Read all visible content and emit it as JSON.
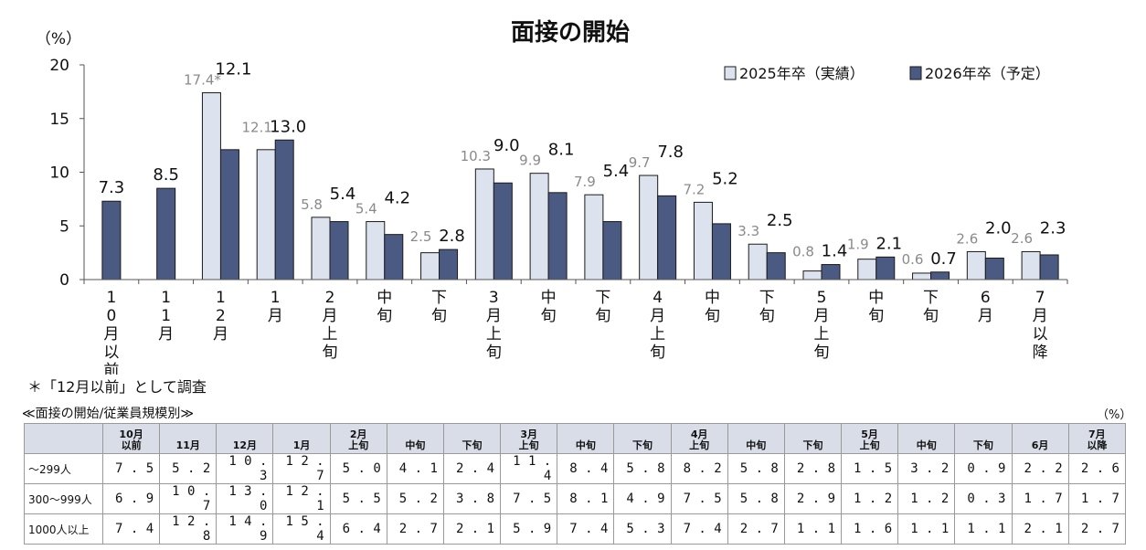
{
  "chart_data": {
    "type": "bar",
    "title": "面接の開始",
    "ylabel": "（%）",
    "ylim": [
      0,
      20
    ],
    "yticks": [
      "0",
      "5",
      "10",
      "15",
      "20"
    ],
    "categories": [
      "10月以前",
      "11月",
      "12月",
      "1月",
      "2月上旬",
      "中旬",
      "下旬",
      "3月上旬",
      "中旬",
      "下旬",
      "4月上旬",
      "中旬",
      "下旬",
      "5月上旬",
      "中旬",
      "下旬",
      "6月",
      "7月以降"
    ],
    "series": [
      {
        "name": "2025年卒（実績）",
        "color": "#dde3ee",
        "values": [
          null,
          null,
          17.4,
          12.1,
          5.8,
          5.4,
          2.5,
          10.3,
          9.9,
          7.9,
          9.7,
          7.2,
          3.3,
          0.8,
          1.9,
          0.6,
          2.6,
          2.6
        ],
        "labels": [
          "",
          "",
          "17.4*",
          "12.1",
          "5.8",
          "5.4",
          "2.5",
          "10.3",
          "9.9",
          "7.9",
          "9.7",
          "7.2",
          "3.3",
          "0.8",
          "1.9",
          "0.6",
          "2.6",
          "2.6"
        ]
      },
      {
        "name": "2026年卒（予定）",
        "color": "#4a5a82",
        "values": [
          7.3,
          8.5,
          12.1,
          13.0,
          5.4,
          4.2,
          2.8,
          9.0,
          8.1,
          5.4,
          7.8,
          5.2,
          2.5,
          1.4,
          2.1,
          0.7,
          2.0,
          2.3
        ],
        "labels": [
          "7.3",
          "8.5",
          "12.1",
          "13.0",
          "5.4",
          "4.2",
          "2.8",
          "9.0",
          "8.1",
          "5.4",
          "7.8",
          "5.2",
          "2.5",
          "1.4",
          "2.1",
          "0.7",
          "2.0",
          "2.3"
        ]
      }
    ],
    "legend_position": "top-right"
  },
  "note": "＊「12月以前」として調査",
  "table": {
    "caption": "≪面接の開始/従業員規模別≫",
    "unit": "（%）",
    "headers": [
      {
        "l1": "10月",
        "l2": "以前"
      },
      {
        "l1": "",
        "l2": "11月"
      },
      {
        "l1": "",
        "l2": "12月"
      },
      {
        "l1": "",
        "l2": "1月"
      },
      {
        "l1": "2月",
        "l2": "上旬"
      },
      {
        "l1": "",
        "l2": "中旬"
      },
      {
        "l1": "",
        "l2": "下旬"
      },
      {
        "l1": "3月",
        "l2": "上旬"
      },
      {
        "l1": "",
        "l2": "中旬"
      },
      {
        "l1": "",
        "l2": "下旬"
      },
      {
        "l1": "4月",
        "l2": "上旬"
      },
      {
        "l1": "",
        "l2": "中旬"
      },
      {
        "l1": "",
        "l2": "下旬"
      },
      {
        "l1": "5月",
        "l2": "上旬"
      },
      {
        "l1": "",
        "l2": "中旬"
      },
      {
        "l1": "",
        "l2": "下旬"
      },
      {
        "l1": "",
        "l2": "6月"
      },
      {
        "l1": "7月",
        "l2": "以降"
      }
    ],
    "rows": [
      {
        "label": "～299人",
        "values": [
          "7.5",
          "5.2",
          "10.3",
          "12.7",
          "5.0",
          "4.1",
          "2.4",
          "11.4",
          "8.4",
          "5.8",
          "8.2",
          "5.8",
          "2.8",
          "1.5",
          "3.2",
          "0.9",
          "2.2",
          "2.6"
        ]
      },
      {
        "label": "300～999人",
        "values": [
          "6.9",
          "10.7",
          "13.0",
          "12.1",
          "5.5",
          "5.2",
          "3.8",
          "7.5",
          "8.1",
          "4.9",
          "7.5",
          "5.8",
          "2.9",
          "1.2",
          "1.2",
          "0.3",
          "1.7",
          "1.7"
        ]
      },
      {
        "label": "1000人以上",
        "values": [
          "7.4",
          "12.8",
          "14.9",
          "15.4",
          "6.4",
          "2.7",
          "2.1",
          "5.9",
          "7.4",
          "5.3",
          "7.4",
          "2.7",
          "1.1",
          "1.6",
          "1.1",
          "1.1",
          "2.1",
          "2.7"
        ]
      }
    ]
  }
}
